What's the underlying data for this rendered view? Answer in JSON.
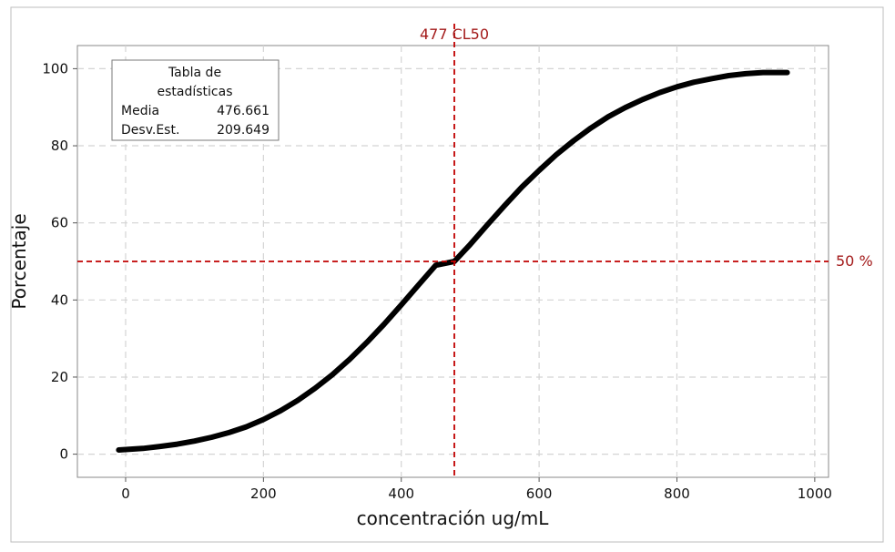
{
  "chart_data": {
    "type": "line",
    "xlabel": "concentración ug/mL",
    "ylabel": "Porcentaje",
    "xlim": [
      -70,
      1020
    ],
    "ylim": [
      -6,
      106
    ],
    "xticks": [
      0,
      200,
      400,
      600,
      800,
      1000
    ],
    "yticks": [
      0,
      20,
      40,
      60,
      80,
      100
    ],
    "grid": true,
    "grid_style": "dashed",
    "series": [
      {
        "color": "#000000",
        "x": [
          -10,
          0,
          25,
          50,
          75,
          100,
          125,
          150,
          175,
          200,
          225,
          250,
          275,
          300,
          325,
          350,
          375,
          400,
          425,
          450,
          477,
          500,
          525,
          550,
          575,
          600,
          625,
          650,
          675,
          700,
          725,
          750,
          775,
          800,
          825,
          850,
          875,
          900,
          925,
          960
        ],
        "y": [
          1.1,
          1.2,
          1.5,
          2.0,
          2.6,
          3.4,
          4.4,
          5.6,
          7.1,
          9.0,
          11.3,
          14.0,
          17.1,
          20.6,
          24.6,
          29.0,
          33.7,
          38.7,
          43.9,
          49.0,
          50.0,
          54.4,
          59.5,
          64.5,
          69.3,
          73.6,
          77.7,
          81.3,
          84.6,
          87.5,
          89.9,
          92.0,
          93.8,
          95.3,
          96.5,
          97.4,
          98.2,
          98.7,
          99.0,
          99.0
        ]
      }
    ],
    "reference_lines": [
      {
        "axis": "x",
        "value": 477,
        "label": "477 CL50",
        "color": "#c00000"
      },
      {
        "axis": "y",
        "value": 50,
        "label": "50 %",
        "color": "#c00000"
      }
    ],
    "stats_table": {
      "title_line1": "Tabla de",
      "title_line2": "estadísticas",
      "rows": [
        {
          "label": "Media",
          "value": "476.661"
        },
        {
          "label": "Desv.Est.",
          "value": "209.649"
        }
      ],
      "placement": "top-left"
    }
  }
}
